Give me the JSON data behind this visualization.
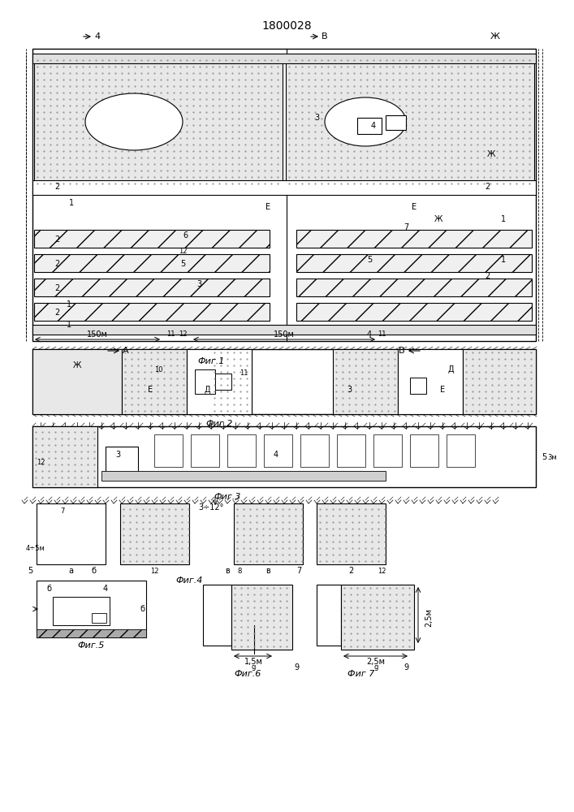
{
  "title": "1800028",
  "bg_color": "#ffffff",
  "line_color": "#000000",
  "fig1_label": "Фиг.1",
  "fig2_label": "Фиг.2",
  "fig3_label": "Фиг.3",
  "fig4_label": "Фиг.4",
  "fig5_label": "Фиг.5",
  "fig6_label": "Фиг.6",
  "fig7_label": "Фиг 7",
  "label_A": "А",
  "label_B": "В",
  "label_Zh": "Ж",
  "label_4": "4",
  "label_150m_1": "150м",
  "label_150m_2": "150м",
  "label_3_12": "3÷12°",
  "label_4_5m": "4÷5м",
  "label_1_5m": "1,5м",
  "label_2_5m": "2,5м",
  "label_3m": "3м",
  "dot_fill": "#d8d8d8",
  "hatch_fill": "#c8c8c8"
}
